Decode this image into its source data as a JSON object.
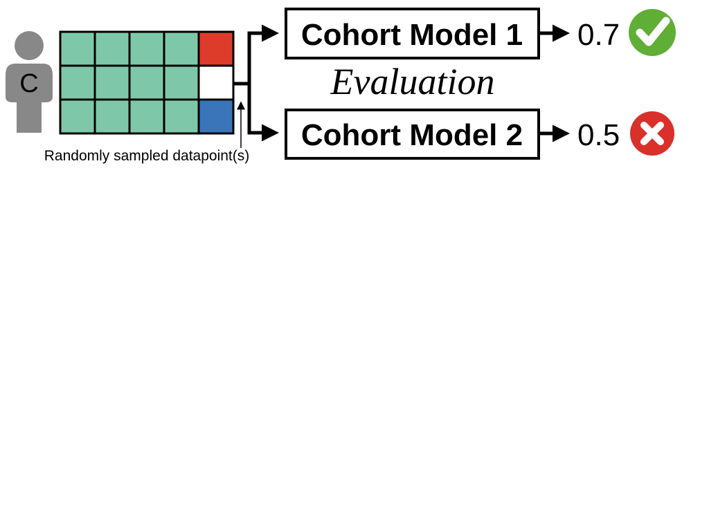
{
  "person": {
    "label": "C",
    "icon": "person-icon",
    "color": "#888888"
  },
  "grid": {
    "rows": 3,
    "cols": 5,
    "default_color": "#7ec8a9",
    "special_cells": [
      {
        "row": 0,
        "col": 4,
        "color": "#de3c2a"
      },
      {
        "row": 1,
        "col": 4,
        "color": "#ffffff"
      },
      {
        "row": 2,
        "col": 4,
        "color": "#3a75b9"
      }
    ]
  },
  "caption": "Randomly sampled datapoint(s)",
  "evaluation_label": "Evaluation",
  "models": [
    {
      "label": "Cohort Model 1",
      "score": "0.7",
      "result_icon": "check-icon",
      "result_color": "#5fae35"
    },
    {
      "label": "Cohort Model 2",
      "score": "0.5",
      "result_icon": "cross-icon",
      "result_color": "#d9302b"
    }
  ]
}
